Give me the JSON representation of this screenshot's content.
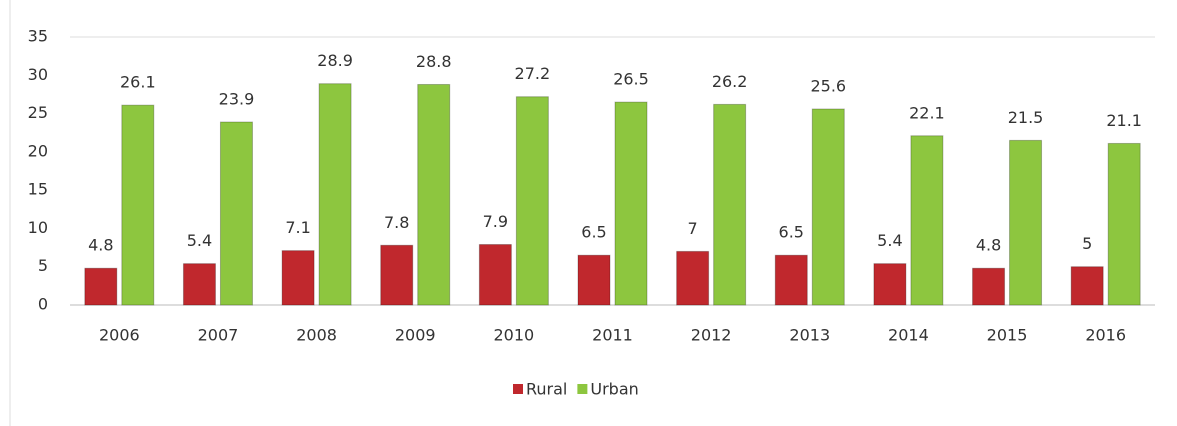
{
  "chart_data": {
    "type": "bar",
    "categories": [
      "2006",
      "2007",
      "2008",
      "2009",
      "2010",
      "2011",
      "2012",
      "2013",
      "2014",
      "2015",
      "2016"
    ],
    "series": [
      {
        "name": "Rural",
        "color": "#c0282d",
        "values": [
          4.8,
          5.4,
          7.1,
          7.8,
          7.9,
          6.5,
          7,
          6.5,
          5.4,
          4.8,
          5
        ]
      },
      {
        "name": "Urban",
        "color": "#8dc63f",
        "values": [
          26.1,
          23.9,
          28.9,
          28.8,
          27.2,
          26.5,
          26.2,
          25.6,
          22.1,
          21.5,
          21.1
        ]
      }
    ],
    "ylim": [
      0,
      35
    ],
    "yticks": [
      0,
      5,
      10,
      15,
      20,
      25,
      30,
      35
    ],
    "grid": false,
    "legend": "bottom"
  }
}
